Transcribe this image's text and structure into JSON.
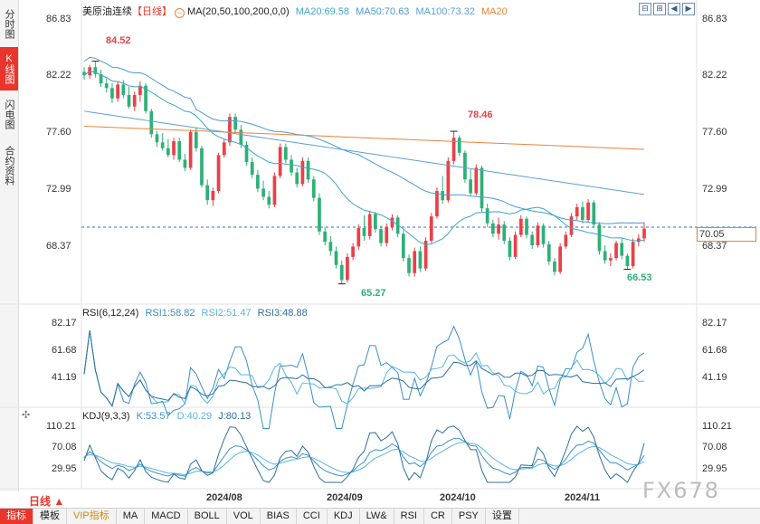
{
  "left_tabs": [
    "分时图",
    "K线图",
    "闪电图",
    "合约资料"
  ],
  "active_left_tab": 1,
  "header": {
    "symbol": "美原油连续",
    "period": "【日线】",
    "ma_label": "MA(20,50,100,200,0,0)",
    "ma20": "MA20:69.58",
    "ma50": "MA50:70.63",
    "ma100": "MA100:73.32",
    "ma20b": "MA20"
  },
  "colors": {
    "up": "#e8414a",
    "down": "#2fb077",
    "ma20": "#3aa7c9",
    "ma50": "#4a9bd6",
    "ma100": "#5aa0d8",
    "ma200": "#e8843a",
    "rsi1": "#3a8fc9",
    "rsi2": "#58b6e0",
    "rsi3": "#2e6f9e",
    "price_line": "#2f6fbf",
    "accent": "#e9352b"
  },
  "main_axis": {
    "ticks": [
      "86.83",
      "82.22",
      "77.60",
      "72.99",
      "68.37"
    ],
    "current_price": "70.05"
  },
  "annotations": {
    "high1": "84.52",
    "high2": "78.46",
    "low1": "65.27",
    "low2": "66.53"
  },
  "rsi": {
    "label": "RSI(6,12,24)",
    "rsi1": "RSI1:58.82",
    "rsi2": "RSI2:51.47",
    "rsi3": "RSI3:48.88",
    "ticks": [
      "82.17",
      "61.68",
      "41.19"
    ]
  },
  "kdj": {
    "label": "KDJ(9,3,3)",
    "k": "K:53.57",
    "d": "D:40.29",
    "j": "J:80.13",
    "ticks": [
      "110.21",
      "70.08",
      "29.95"
    ]
  },
  "xaxis": {
    "labels": [
      "2024/08",
      "2024/09",
      "2024/10",
      "2024/11"
    ]
  },
  "period_selector": "日线 ▲",
  "watermark": "FX678",
  "bottom_tabs": [
    "指标",
    "模板",
    "VIP指标",
    "MA",
    "MACD",
    "BOLL",
    "VOL",
    "BIAS",
    "CCI",
    "KDJ",
    "LW&",
    "RSI",
    "CR",
    "PSY",
    "设置"
  ],
  "chart_data": {
    "type": "candlestick",
    "price_range": [
      63.6,
      88.4
    ],
    "series": [
      {
        "name": "MA20",
        "values": []
      },
      {
        "name": "MA50",
        "values": []
      },
      {
        "name": "MA100",
        "values": []
      }
    ],
    "candles_ohlc": [
      [
        83.6,
        84.0,
        82.9,
        83.3
      ],
      [
        83.3,
        84.2,
        83.0,
        84.0
      ],
      [
        84.0,
        84.52,
        83.1,
        83.4
      ],
      [
        83.4,
        83.8,
        82.3,
        82.6
      ],
      [
        82.6,
        83.0,
        81.8,
        82.2
      ],
      [
        82.2,
        82.6,
        80.9,
        81.3
      ],
      [
        81.3,
        82.8,
        81.0,
        82.5
      ],
      [
        82.5,
        82.9,
        81.3,
        81.6
      ],
      [
        81.6,
        82.3,
        80.4,
        80.6
      ],
      [
        80.6,
        81.9,
        80.2,
        81.6
      ],
      [
        81.6,
        82.8,
        81.0,
        82.4
      ],
      [
        82.4,
        82.6,
        80.0,
        80.2
      ],
      [
        80.2,
        80.4,
        77.9,
        78.2
      ],
      [
        78.2,
        78.5,
        77.1,
        77.5
      ],
      [
        77.5,
        78.3,
        76.8,
        77.0
      ],
      [
        77.0,
        77.8,
        76.2,
        76.4
      ],
      [
        76.4,
        77.9,
        76.0,
        77.6
      ],
      [
        77.6,
        77.9,
        75.8,
        76.0
      ],
      [
        76.0,
        76.5,
        75.0,
        75.3
      ],
      [
        75.3,
        78.6,
        75.1,
        78.4
      ],
      [
        78.4,
        78.8,
        76.7,
        77.0
      ],
      [
        77.0,
        77.2,
        73.6,
        73.8
      ],
      [
        73.8,
        74.3,
        72.1,
        72.5
      ],
      [
        72.5,
        73.6,
        72.0,
        73.3
      ],
      [
        73.3,
        76.6,
        73.1,
        76.4
      ],
      [
        76.4,
        77.8,
        76.2,
        77.5
      ],
      [
        77.5,
        80.0,
        77.2,
        79.7
      ],
      [
        79.7,
        80.0,
        78.3,
        78.6
      ],
      [
        78.6,
        79.0,
        77.0,
        77.3
      ],
      [
        77.3,
        77.6,
        75.5,
        75.8
      ],
      [
        75.8,
        76.2,
        74.4,
        74.7
      ],
      [
        74.7,
        75.1,
        73.2,
        73.5
      ],
      [
        73.5,
        74.2,
        72.5,
        72.8
      ],
      [
        72.8,
        73.3,
        71.8,
        72.1
      ],
      [
        72.1,
        74.9,
        71.9,
        74.6
      ],
      [
        74.6,
        77.4,
        74.4,
        77.1
      ],
      [
        77.1,
        77.4,
        75.7,
        76.0
      ],
      [
        76.0,
        76.4,
        74.6,
        74.9
      ],
      [
        74.9,
        75.3,
        73.6,
        73.9
      ],
      [
        73.9,
        76.2,
        73.7,
        75.9
      ],
      [
        75.9,
        76.2,
        74.0,
        74.3
      ],
      [
        74.3,
        74.6,
        72.4,
        72.7
      ],
      [
        72.7,
        73.1,
        69.5,
        69.8
      ],
      [
        69.8,
        70.2,
        68.6,
        68.9
      ],
      [
        68.9,
        69.4,
        67.7,
        68.1
      ],
      [
        68.1,
        68.5,
        66.6,
        66.9
      ],
      [
        66.9,
        67.3,
        65.27,
        65.6
      ],
      [
        65.6,
        67.9,
        65.4,
        67.6
      ],
      [
        67.6,
        68.8,
        67.3,
        68.5
      ],
      [
        68.5,
        70.4,
        68.2,
        70.1
      ],
      [
        70.1,
        71.2,
        69.0,
        69.4
      ],
      [
        69.4,
        71.6,
        69.1,
        71.3
      ],
      [
        71.3,
        71.5,
        69.7,
        70.0
      ],
      [
        70.0,
        70.3,
        68.5,
        68.8
      ],
      [
        68.8,
        70.5,
        68.5,
        70.2
      ],
      [
        70.2,
        71.3,
        69.9,
        71.0
      ],
      [
        71.0,
        71.2,
        69.3,
        69.6
      ],
      [
        69.6,
        69.9,
        67.2,
        67.5
      ],
      [
        67.5,
        67.8,
        65.9,
        66.2
      ],
      [
        66.2,
        68.4,
        65.9,
        68.1
      ],
      [
        68.1,
        68.5,
        66.3,
        66.6
      ],
      [
        66.6,
        69.3,
        66.4,
        69.0
      ],
      [
        69.0,
        71.4,
        68.8,
        71.1
      ],
      [
        71.1,
        73.6,
        70.9,
        73.3
      ],
      [
        73.3,
        74.6,
        72.2,
        72.5
      ],
      [
        72.5,
        76.2,
        72.3,
        75.9
      ],
      [
        75.9,
        78.46,
        75.6,
        77.9
      ],
      [
        77.9,
        78.1,
        76.3,
        76.6
      ],
      [
        76.6,
        76.8,
        74.0,
        74.3
      ],
      [
        74.3,
        75.2,
        72.8,
        73.1
      ],
      [
        73.1,
        75.6,
        72.9,
        75.3
      ],
      [
        75.3,
        75.5,
        71.5,
        71.8
      ],
      [
        71.8,
        72.2,
        70.2,
        70.5
      ],
      [
        70.5,
        70.8,
        69.3,
        69.6
      ],
      [
        69.6,
        71.0,
        69.1,
        70.4
      ],
      [
        70.4,
        70.7,
        68.7,
        69.0
      ],
      [
        69.0,
        69.3,
        67.3,
        67.6
      ],
      [
        67.6,
        69.8,
        67.4,
        69.5
      ],
      [
        69.5,
        71.2,
        69.3,
        70.9
      ],
      [
        70.9,
        71.1,
        69.2,
        69.5
      ],
      [
        69.5,
        69.8,
        68.3,
        68.6
      ],
      [
        68.6,
        70.6,
        68.4,
        70.3
      ],
      [
        70.3,
        70.5,
        68.4,
        68.7
      ],
      [
        68.7,
        69.0,
        66.9,
        67.2
      ],
      [
        67.2,
        67.5,
        66.0,
        66.3
      ],
      [
        66.3,
        68.8,
        66.1,
        68.5
      ],
      [
        68.5,
        69.8,
        68.3,
        69.5
      ],
      [
        69.5,
        71.4,
        69.3,
        71.1
      ],
      [
        71.1,
        72.2,
        70.8,
        71.9
      ],
      [
        71.9,
        72.4,
        70.5,
        70.8
      ],
      [
        70.8,
        72.6,
        70.6,
        72.3
      ],
      [
        72.3,
        72.5,
        70.1,
        70.4
      ],
      [
        70.4,
        70.6,
        67.8,
        68.1
      ],
      [
        68.1,
        68.6,
        67.0,
        67.3
      ],
      [
        67.3,
        67.9,
        66.8,
        67.5
      ],
      [
        67.5,
        69.0,
        67.3,
        68.8
      ],
      [
        68.8,
        69.2,
        67.4,
        67.7
      ],
      [
        67.7,
        67.9,
        66.53,
        66.8
      ],
      [
        66.8,
        69.2,
        66.6,
        68.9
      ],
      [
        68.9,
        69.6,
        68.5,
        69.2
      ],
      [
        69.2,
        70.6,
        68.9,
        70.05
      ]
    ]
  }
}
